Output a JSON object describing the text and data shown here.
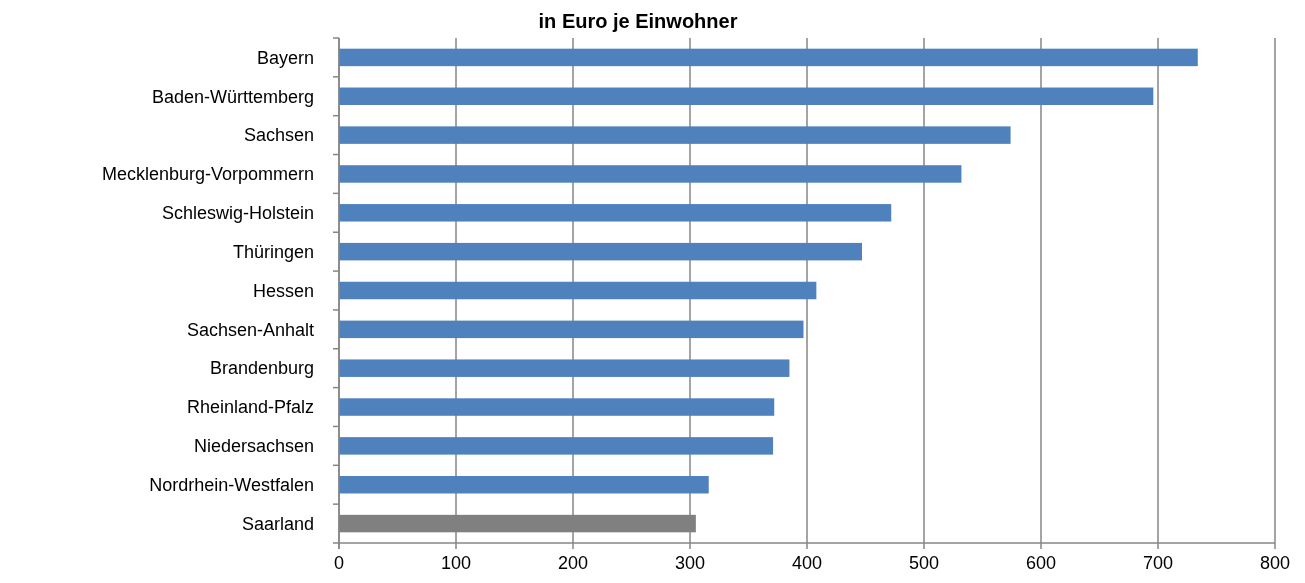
{
  "chart_data": {
    "type": "bar",
    "orientation": "horizontal",
    "title": "in Euro je Einwohner",
    "categories": [
      "Bayern",
      "Baden-Württemberg",
      "Sachsen",
      "Mecklenburg-Vorpommern",
      "Schleswig-Holstein",
      "Thüringen",
      "Hessen",
      "Sachsen-Anhalt",
      "Brandenburg",
      "Rheinland-Pfalz",
      "Niedersachsen",
      "Nordrhein-Westfalen",
      "Saarland"
    ],
    "values": [
      734,
      696,
      574,
      532,
      472,
      447,
      408,
      397,
      385,
      372,
      371,
      316,
      305
    ],
    "colors": [
      "#4f81bd",
      "#4f81bd",
      "#4f81bd",
      "#4f81bd",
      "#4f81bd",
      "#4f81bd",
      "#4f81bd",
      "#4f81bd",
      "#4f81bd",
      "#4f81bd",
      "#4f81bd",
      "#4f81bd",
      "#808080"
    ],
    "xlim": [
      0,
      800
    ],
    "xticks": [
      0,
      100,
      200,
      300,
      400,
      500,
      600,
      700,
      800
    ],
    "grid": "x"
  }
}
